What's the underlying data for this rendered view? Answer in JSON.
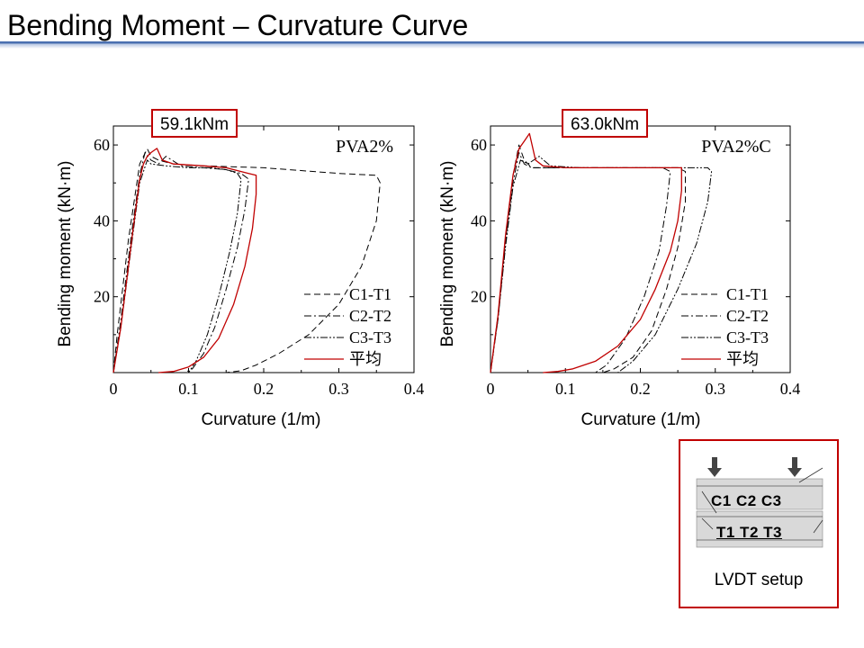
{
  "page": {
    "title": "Bending Moment – Curvature Curve"
  },
  "chart_data": [
    {
      "type": "line",
      "title": "PVA2%",
      "callout": "59.1kNm",
      "xlabel": "Curvature (1/m)",
      "ylabel": "Bending moment (kN·m)",
      "xlim": [
        0,
        0.4
      ],
      "ylim": [
        0,
        65
      ],
      "xticks": [
        "0",
        "0.1",
        "0.2",
        "0.3",
        "0.4"
      ],
      "yticks": [
        "20",
        "40",
        "60"
      ],
      "legend_position": "bottom-right",
      "series": [
        {
          "name": "C1-T1",
          "style": "dashed",
          "x": [
            0,
            0.005,
            0.02,
            0.035,
            0.045,
            0.05,
            0.06,
            0.08,
            0.12,
            0.2,
            0.3,
            0.35,
            0.355,
            0.35,
            0.33,
            0.3,
            0.26,
            0.22,
            0.19,
            0.17,
            0.15
          ],
          "y": [
            0,
            10,
            35,
            55,
            59,
            57,
            56,
            55,
            54.5,
            54,
            52.5,
            52,
            50,
            40,
            28,
            18,
            10,
            5,
            2,
            0.5,
            0
          ]
        },
        {
          "name": "C2-T2",
          "style": "dashdot",
          "x": [
            0,
            0.01,
            0.025,
            0.035,
            0.042,
            0.05,
            0.06,
            0.07,
            0.09,
            0.12,
            0.15,
            0.17,
            0.18,
            0.175,
            0.165,
            0.15,
            0.135,
            0.12,
            0.105,
            0.095
          ],
          "y": [
            0,
            14,
            38,
            52,
            58,
            56,
            55,
            57,
            54.5,
            54,
            53.5,
            52.5,
            51,
            43,
            33,
            22,
            12,
            5,
            1,
            0
          ]
        },
        {
          "name": "C3-T3",
          "style": "dashdotdot",
          "x": [
            0,
            0.01,
            0.025,
            0.035,
            0.045,
            0.05,
            0.07,
            0.1,
            0.13,
            0.15,
            0.165,
            0.17,
            0.165,
            0.155,
            0.14,
            0.125,
            0.11,
            0.1
          ],
          "y": [
            0,
            12,
            35,
            50,
            56,
            55,
            54.5,
            54,
            54,
            53.5,
            52.5,
            51,
            42,
            32,
            20,
            10,
            3,
            0
          ]
        },
        {
          "name": "平均",
          "style": "solid",
          "color": "#c00000",
          "x": [
            0,
            0.01,
            0.025,
            0.035,
            0.04,
            0.045,
            0.05,
            0.058,
            0.065,
            0.08,
            0.12,
            0.15,
            0.18,
            0.19,
            0.19,
            0.185,
            0.175,
            0.16,
            0.14,
            0.12,
            0.1,
            0.08,
            0.06
          ],
          "y": [
            0,
            12,
            36,
            51,
            55,
            57,
            58,
            59.1,
            56,
            55,
            54.5,
            54,
            52.5,
            52,
            47,
            38,
            28,
            18,
            9,
            4,
            1.5,
            0.3,
            0
          ]
        }
      ]
    },
    {
      "type": "line",
      "title": "PVA2%C",
      "callout": "63.0kNm",
      "xlabel": "Curvature (1/m)",
      "ylabel": "Bending moment (kN·m)",
      "xlim": [
        0,
        0.4
      ],
      "ylim": [
        0,
        65
      ],
      "xticks": [
        "0",
        "0.1",
        "0.2",
        "0.3",
        "0.4"
      ],
      "yticks": [
        "20",
        "40",
        "60"
      ],
      "legend_position": "bottom-right",
      "series": [
        {
          "name": "C1-T1",
          "style": "dashed",
          "x": [
            0,
            0.01,
            0.02,
            0.03,
            0.038,
            0.045,
            0.055,
            0.07,
            0.1,
            0.15,
            0.2,
            0.25,
            0.26,
            0.26,
            0.25,
            0.235,
            0.215,
            0.19,
            0.165,
            0.15
          ],
          "y": [
            0,
            15,
            35,
            52,
            60,
            56,
            54,
            54,
            54,
            54,
            54,
            54,
            53,
            45,
            33,
            22,
            11,
            4,
            1,
            0
          ]
        },
        {
          "name": "C2-T2",
          "style": "dashdot",
          "x": [
            0,
            0.01,
            0.02,
            0.03,
            0.038,
            0.045,
            0.055,
            0.07,
            0.1,
            0.15,
            0.2,
            0.23,
            0.24,
            0.235,
            0.225,
            0.205,
            0.18,
            0.155,
            0.14
          ],
          "y": [
            0,
            14,
            34,
            50,
            58,
            55,
            54,
            54,
            54,
            54,
            54,
            54,
            53,
            44,
            32,
            20,
            9,
            2,
            0
          ]
        },
        {
          "name": "C3-T3",
          "style": "dashdotdot",
          "x": [
            0,
            0.01,
            0.02,
            0.03,
            0.04,
            0.05,
            0.065,
            0.08,
            0.12,
            0.18,
            0.24,
            0.29,
            0.295,
            0.29,
            0.275,
            0.25,
            0.22,
            0.19,
            0.17
          ],
          "y": [
            0,
            14,
            33,
            49,
            56,
            55,
            57,
            54.5,
            54,
            54,
            54,
            54,
            53,
            45,
            34,
            22,
            10,
            3,
            0
          ]
        },
        {
          "name": "平均",
          "style": "solid",
          "color": "#c00000",
          "x": [
            0,
            0.01,
            0.02,
            0.03,
            0.038,
            0.045,
            0.052,
            0.06,
            0.07,
            0.1,
            0.15,
            0.2,
            0.24,
            0.255,
            0.255,
            0.25,
            0.24,
            0.22,
            0.2,
            0.17,
            0.14,
            0.11,
            0.09,
            0.07
          ],
          "y": [
            0,
            15,
            36,
            52,
            59,
            61,
            63.0,
            56,
            54.5,
            54,
            54,
            54,
            54,
            54,
            48,
            40,
            32,
            22,
            14,
            7,
            3,
            1,
            0.3,
            0
          ]
        }
      ]
    }
  ],
  "lvdt": {
    "top_labels": "C1 C2 C3",
    "bottom_labels": "T1 T2 T3",
    "caption": "LVDT setup"
  }
}
